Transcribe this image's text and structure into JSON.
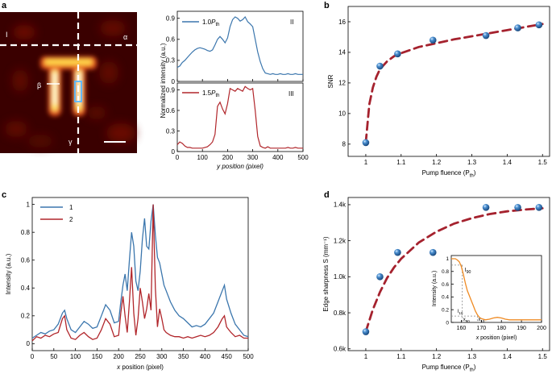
{
  "panel_labels": {
    "a": "a",
    "b": "b",
    "c": "c",
    "d": "d"
  },
  "image_annotations": {
    "I": "I",
    "alpha": "α",
    "beta": "β",
    "gamma": "γ"
  },
  "colors": {
    "blue": "#3b76ad",
    "red": "#b1262b",
    "fit": "#a5222e",
    "orange": "#ef8a22",
    "marker": "#3b7fbf",
    "axis": "#000000"
  },
  "chart_data": [
    {
      "id": "a-II",
      "type": "line",
      "title": "",
      "xlabel": "",
      "ylabel": "Normalized intensity (a.u.)",
      "panel_tag": "II",
      "legend": {
        "label_base": "1.0",
        "label_P": "P",
        "label_sub": "th"
      },
      "xlim": [
        0,
        500
      ],
      "ylim": [
        0,
        1.0
      ],
      "yticks": [
        0,
        0.3,
        0.6,
        0.9
      ],
      "x": [
        0,
        10,
        20,
        30,
        40,
        50,
        60,
        70,
        80,
        90,
        100,
        110,
        120,
        130,
        140,
        150,
        160,
        170,
        180,
        190,
        200,
        210,
        220,
        230,
        240,
        250,
        260,
        270,
        280,
        290,
        300,
        310,
        320,
        330,
        340,
        350,
        360,
        370,
        380,
        390,
        400,
        410,
        420,
        430,
        440,
        450,
        460,
        470,
        480,
        490,
        500
      ],
      "y": [
        0.2,
        0.22,
        0.27,
        0.3,
        0.34,
        0.38,
        0.42,
        0.45,
        0.47,
        0.48,
        0.47,
        0.46,
        0.44,
        0.43,
        0.45,
        0.52,
        0.6,
        0.64,
        0.6,
        0.55,
        0.62,
        0.78,
        0.88,
        0.92,
        0.9,
        0.86,
        0.88,
        0.92,
        0.85,
        0.82,
        0.78,
        0.6,
        0.42,
        0.28,
        0.18,
        0.12,
        0.11,
        0.1,
        0.11,
        0.1,
        0.1,
        0.11,
        0.1,
        0.1,
        0.11,
        0.1,
        0.1,
        0.11,
        0.1,
        0.1,
        0.1
      ]
    },
    {
      "id": "a-III",
      "type": "line",
      "title": "",
      "xlabel": "y position (pixel)",
      "ylabel": "",
      "panel_tag": "III",
      "legend": {
        "label_base": "1.5",
        "label_P": "P",
        "label_sub": "th"
      },
      "xlim": [
        0,
        500
      ],
      "ylim": [
        0,
        1.0
      ],
      "yticks": [
        0,
        0.3,
        0.6,
        0.9
      ],
      "xticks": [
        0,
        100,
        200,
        300,
        400,
        500
      ],
      "x": [
        0,
        10,
        20,
        30,
        40,
        50,
        60,
        70,
        80,
        90,
        100,
        110,
        120,
        130,
        140,
        150,
        160,
        170,
        180,
        190,
        200,
        210,
        220,
        230,
        240,
        250,
        260,
        270,
        280,
        290,
        300,
        310,
        320,
        330,
        340,
        350,
        360,
        370,
        380,
        390,
        400,
        410,
        420,
        430,
        440,
        450,
        460,
        470,
        480,
        490,
        500
      ],
      "y": [
        0.1,
        0.14,
        0.12,
        0.08,
        0.06,
        0.06,
        0.05,
        0.05,
        0.05,
        0.05,
        0.05,
        0.06,
        0.07,
        0.1,
        0.14,
        0.25,
        0.66,
        0.72,
        0.62,
        0.55,
        0.7,
        0.92,
        0.9,
        0.88,
        0.92,
        0.9,
        0.88,
        0.95,
        0.92,
        0.9,
        0.92,
        0.6,
        0.22,
        0.08,
        0.06,
        0.05,
        0.07,
        0.05,
        0.05,
        0.05,
        0.05,
        0.05,
        0.05,
        0.05,
        0.06,
        0.05,
        0.05,
        0.06,
        0.05,
        0.05,
        0.05
      ]
    },
    {
      "id": "b",
      "type": "scatter",
      "title": "",
      "xlabel": "Pump fluence (P",
      "xlabel_sub": "th",
      "xlabel_end": ")",
      "ylabel": "SNR",
      "xlim": [
        0.95,
        1.52
      ],
      "ylim": [
        7.2,
        17.0
      ],
      "xticks": [
        1.0,
        1.1,
        1.2,
        1.3,
        1.4,
        1.5
      ],
      "yticks": [
        8,
        10,
        12,
        14,
        16
      ],
      "points": {
        "x": [
          1.0,
          1.04,
          1.09,
          1.19,
          1.34,
          1.43,
          1.49
        ],
        "y": [
          8.1,
          13.1,
          13.9,
          14.8,
          15.1,
          15.6,
          15.8
        ]
      },
      "fit": {
        "x": [
          1.0,
          1.01,
          1.02,
          1.03,
          1.04,
          1.06,
          1.08,
          1.1,
          1.15,
          1.2,
          1.25,
          1.3,
          1.35,
          1.4,
          1.45,
          1.5
        ],
        "y": [
          8.1,
          10.6,
          11.7,
          12.4,
          12.9,
          13.4,
          13.75,
          13.95,
          14.35,
          14.6,
          14.85,
          15.05,
          15.25,
          15.45,
          15.65,
          15.85
        ]
      }
    },
    {
      "id": "c",
      "type": "line",
      "title": "",
      "xlabel": "x position (pixel)",
      "ylabel": "Intensity (a.u.)",
      "xlim": [
        0,
        500
      ],
      "ylim": [
        -0.05,
        1.05
      ],
      "xticks": [
        0,
        50,
        100,
        150,
        200,
        250,
        300,
        350,
        400,
        450,
        500
      ],
      "yticks": [
        0,
        0.2,
        0.4,
        0.6,
        0.8,
        1.0
      ],
      "series": [
        {
          "name": "1",
          "x": [
            0,
            10,
            20,
            30,
            40,
            50,
            60,
            70,
            75,
            80,
            90,
            100,
            110,
            120,
            130,
            140,
            150,
            160,
            170,
            180,
            190,
            200,
            205,
            210,
            215,
            220,
            225,
            230,
            235,
            240,
            245,
            250,
            255,
            260,
            265,
            270,
            275,
            280,
            285,
            290,
            295,
            300,
            305,
            310,
            320,
            330,
            340,
            350,
            360,
            370,
            380,
            390,
            400,
            410,
            420,
            430,
            440,
            445,
            450,
            460,
            470,
            480,
            490,
            500
          ],
          "y": [
            0.04,
            0.06,
            0.08,
            0.07,
            0.09,
            0.1,
            0.14,
            0.22,
            0.24,
            0.18,
            0.1,
            0.08,
            0.12,
            0.16,
            0.14,
            0.11,
            0.12,
            0.2,
            0.28,
            0.24,
            0.15,
            0.16,
            0.3,
            0.42,
            0.5,
            0.38,
            0.6,
            0.8,
            0.7,
            0.45,
            0.38,
            0.52,
            0.75,
            0.9,
            0.7,
            0.68,
            0.88,
            1.0,
            0.78,
            0.62,
            0.58,
            0.5,
            0.42,
            0.38,
            0.3,
            0.24,
            0.2,
            0.18,
            0.15,
            0.12,
            0.13,
            0.12,
            0.14,
            0.18,
            0.22,
            0.3,
            0.38,
            0.42,
            0.32,
            0.22,
            0.14,
            0.1,
            0.06,
            0.05
          ]
        },
        {
          "name": "2",
          "x": [
            0,
            10,
            20,
            30,
            40,
            50,
            60,
            70,
            75,
            80,
            90,
            100,
            110,
            120,
            130,
            140,
            150,
            160,
            170,
            180,
            190,
            200,
            205,
            210,
            215,
            220,
            225,
            230,
            235,
            240,
            245,
            250,
            255,
            260,
            265,
            270,
            275,
            280,
            285,
            290,
            295,
            300,
            305,
            310,
            320,
            330,
            340,
            350,
            360,
            370,
            380,
            390,
            400,
            410,
            420,
            430,
            440,
            445,
            450,
            460,
            470,
            480,
            490,
            500
          ],
          "y": [
            0.02,
            0.05,
            0.04,
            0.06,
            0.05,
            0.07,
            0.08,
            0.18,
            0.2,
            0.1,
            0.04,
            0.03,
            0.06,
            0.08,
            0.05,
            0.03,
            0.04,
            0.1,
            0.18,
            0.14,
            0.05,
            0.06,
            0.22,
            0.34,
            0.2,
            0.08,
            0.3,
            0.55,
            0.22,
            0.06,
            0.18,
            0.4,
            0.3,
            0.18,
            0.25,
            0.36,
            0.24,
            1.0,
            0.4,
            0.12,
            0.25,
            0.18,
            0.1,
            0.08,
            0.06,
            0.05,
            0.05,
            0.04,
            0.05,
            0.04,
            0.05,
            0.06,
            0.05,
            0.06,
            0.08,
            0.12,
            0.18,
            0.2,
            0.12,
            0.08,
            0.05,
            0.06,
            0.04,
            0.04
          ]
        }
      ]
    },
    {
      "id": "d",
      "type": "scatter",
      "title": "",
      "xlabel": "Pump fluence (P",
      "xlabel_sub": "th",
      "xlabel_end": ")",
      "ylabel": "Edge sharpness S (mm⁻¹)",
      "xlim": [
        0.95,
        1.52
      ],
      "ylim": [
        590,
        1440
      ],
      "xticks": [
        1.0,
        1.1,
        1.2,
        1.3,
        1.4,
        1.5
      ],
      "yticks": [
        600,
        800,
        1000,
        1200,
        1400
      ],
      "ytick_labels": [
        "0.6k",
        "0.8k",
        "1.0k",
        "1.2k",
        "1.4k"
      ],
      "points": {
        "x": [
          1.0,
          1.04,
          1.09,
          1.19,
          1.34,
          1.43,
          1.49
        ],
        "y": [
          695,
          1000,
          1135,
          1135,
          1385,
          1385,
          1385
        ]
      },
      "fit": {
        "x": [
          1.0,
          1.02,
          1.04,
          1.06,
          1.08,
          1.1,
          1.15,
          1.2,
          1.25,
          1.3,
          1.35,
          1.4,
          1.45,
          1.5
        ],
        "y": [
          695,
          818,
          915,
          992,
          1052,
          1100,
          1190,
          1250,
          1295,
          1325,
          1348,
          1363,
          1373,
          1380
        ]
      }
    },
    {
      "id": "d-inset",
      "type": "line",
      "title": "",
      "xlabel": "x position (pixel)",
      "ylabel": "Intensity (a.u.)",
      "xlim": [
        155,
        200
      ],
      "ylim": [
        0,
        1.05
      ],
      "xticks": [
        160,
        170,
        180,
        190,
        200
      ],
      "yticks": [
        0,
        0.2,
        0.4,
        0.6,
        0.8,
        1.0
      ],
      "annotations": {
        "I90": "I",
        "I90_sub": "90",
        "I10": "I",
        "I10_sub": "10",
        "x90": "x",
        "x90_sub": "90",
        "x10": "x",
        "x10_sub": "10"
      },
      "x": [
        155,
        156,
        157,
        158,
        159,
        160,
        161,
        162,
        163,
        164,
        165,
        166,
        167,
        168,
        169,
        170,
        172,
        174,
        176,
        178,
        180,
        182,
        184,
        186,
        188,
        190,
        192,
        194,
        196,
        198,
        200
      ],
      "y": [
        1.0,
        1.0,
        1.0,
        0.98,
        0.95,
        0.88,
        0.76,
        0.62,
        0.5,
        0.42,
        0.34,
        0.26,
        0.18,
        0.12,
        0.08,
        0.06,
        0.04,
        0.05,
        0.07,
        0.08,
        0.07,
        0.05,
        0.04,
        0.04,
        0.04,
        0.04,
        0.04,
        0.04,
        0.04,
        0.04,
        0.04
      ]
    }
  ]
}
